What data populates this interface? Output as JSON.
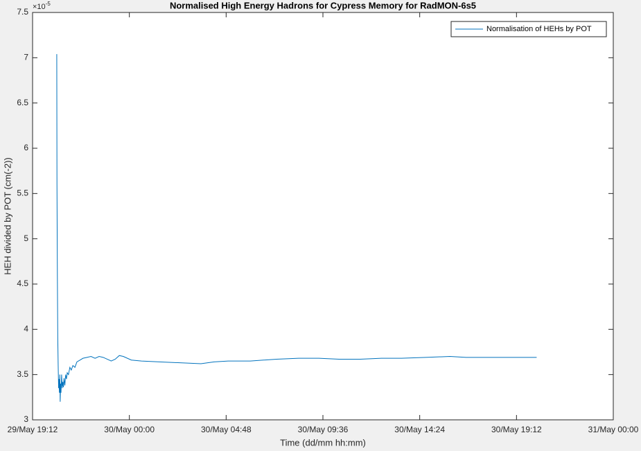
{
  "chart_data": {
    "type": "line",
    "title": "Normalised High Energy Hadrons for Cypress Memory for RadMON-6s5",
    "xlabel": "Time (dd/mm hh:mm)",
    "ylabel": "HEH divided by POT (cm(-2))",
    "y_multiplier": {
      "base": "×10",
      "exponent": "-5"
    },
    "xlim": [
      0,
      28.8
    ],
    "xticks": [
      {
        "value": 0,
        "label": "29/May 19:12"
      },
      {
        "value": 4.8,
        "label": "30/May 00:00"
      },
      {
        "value": 9.6,
        "label": "30/May 04:48"
      },
      {
        "value": 14.4,
        "label": "30/May 09:36"
      },
      {
        "value": 19.2,
        "label": "30/May 14:24"
      },
      {
        "value": 24,
        "label": "30/May 19:12"
      },
      {
        "value": 28.8,
        "label": "31/May 00:00"
      }
    ],
    "ylim": [
      3,
      7.5
    ],
    "yticks": [
      3,
      3.5,
      4,
      4.5,
      5,
      5.5,
      6,
      6.5,
      7,
      7.5
    ],
    "legend": "northeast",
    "series": [
      {
        "name": "Normalisation of HEHs by POT",
        "color": "#0072bd",
        "x": [
          1.2,
          1.21,
          1.23,
          1.25,
          1.27,
          1.29,
          1.31,
          1.33,
          1.35,
          1.37,
          1.39,
          1.41,
          1.44,
          1.47,
          1.5,
          1.53,
          1.56,
          1.6,
          1.64,
          1.68,
          1.72,
          1.78,
          1.85,
          1.92,
          2.0,
          2.1,
          2.2,
          2.35,
          2.5,
          2.7,
          2.9,
          3.1,
          3.3,
          3.5,
          3.7,
          3.9,
          4.1,
          4.3,
          4.5,
          4.9,
          5.4,
          6.3,
          7.3,
          8.35,
          9.0,
          9.7,
          10.8,
          12.1,
          13.2,
          14.2,
          15.2,
          16.25,
          17.3,
          18.3,
          19.5,
          20.7,
          21.5,
          22.4,
          23.7,
          25.0
        ],
        "values": [
          7.04,
          5.6,
          4.6,
          3.9,
          3.6,
          3.35,
          3.45,
          3.3,
          3.5,
          3.2,
          3.4,
          3.3,
          3.5,
          3.35,
          3.42,
          3.36,
          3.46,
          3.38,
          3.5,
          3.45,
          3.52,
          3.5,
          3.58,
          3.55,
          3.6,
          3.58,
          3.64,
          3.66,
          3.68,
          3.69,
          3.7,
          3.68,
          3.7,
          3.69,
          3.67,
          3.65,
          3.67,
          3.71,
          3.7,
          3.66,
          3.65,
          3.64,
          3.63,
          3.62,
          3.64,
          3.65,
          3.65,
          3.67,
          3.68,
          3.68,
          3.67,
          3.67,
          3.68,
          3.68,
          3.69,
          3.7,
          3.69,
          3.69,
          3.69,
          3.69
        ]
      }
    ]
  }
}
